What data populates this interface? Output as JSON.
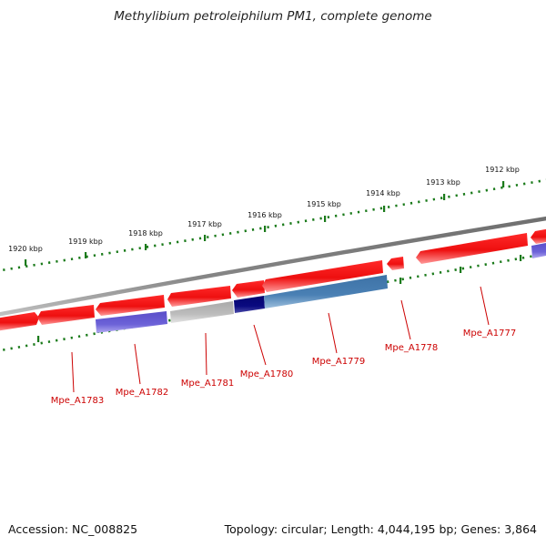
{
  "title": "Methylibium petroleiphilum PM1, complete genome",
  "footer": {
    "accession": "Accession: NC_008825",
    "summary": "Topology: circular; Length: 4,044,195 bp; Genes: 3,864"
  },
  "scale_labels": [
    "1920 kbp",
    "1919 kbp",
    "1918 kbp",
    "1917 kbp",
    "1916 kbp",
    "1915 kbp",
    "1914 kbp",
    "1913 kbp",
    "1912 kbp"
  ],
  "gene_labels": [
    "Mpe_A1783",
    "Mpe_A1782",
    "Mpe_A1781",
    "Mpe_A1780",
    "Mpe_A1779",
    "Mpe_A1778",
    "Mpe_A1777"
  ],
  "colors": {
    "backbone": "#7a7a7a",
    "forward_gene": "#ee1111",
    "label_red": "#cc0000",
    "tick_green": "#1a7a1a",
    "purple_gene": "#6a5acd",
    "grey_gene": "#b8b8b8",
    "navy_gene": "#0a0a80",
    "steelblue_gene": "#4a7fb0"
  }
}
